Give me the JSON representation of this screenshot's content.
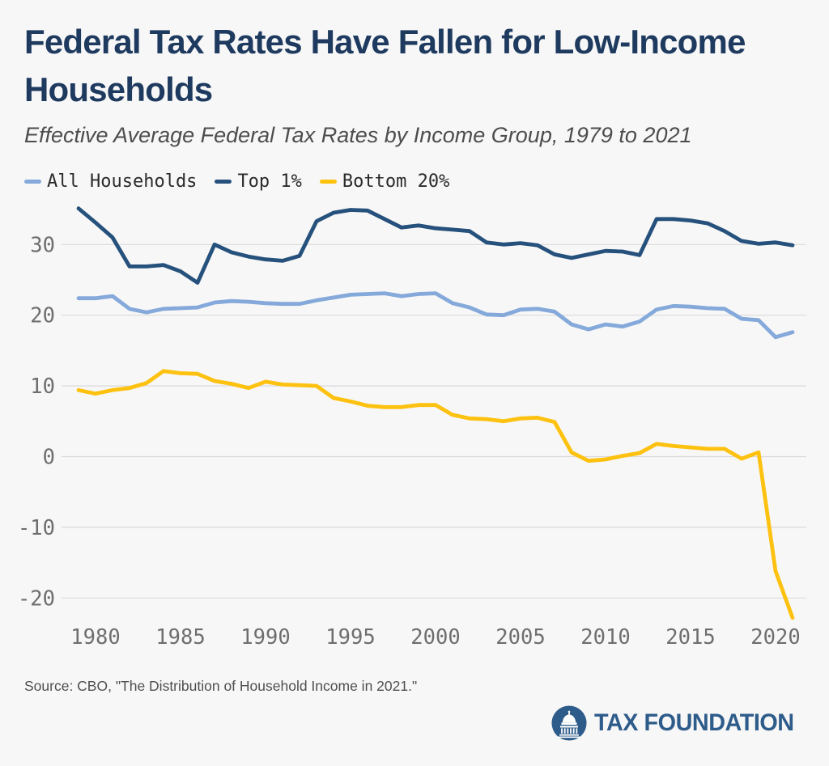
{
  "header": {
    "title": "Federal Tax Rates Have Fallen for Low-Income Households",
    "subtitle": "Effective Average Federal Tax Rates by Income Group, 1979 to 2021"
  },
  "chart_data": {
    "type": "line",
    "x": [
      1979,
      1980,
      1981,
      1982,
      1983,
      1984,
      1985,
      1986,
      1987,
      1988,
      1989,
      1990,
      1991,
      1992,
      1993,
      1994,
      1995,
      1996,
      1997,
      1998,
      1999,
      2000,
      2001,
      2002,
      2003,
      2004,
      2005,
      2006,
      2007,
      2008,
      2009,
      2010,
      2011,
      2012,
      2013,
      2014,
      2015,
      2016,
      2017,
      2018,
      2019,
      2020,
      2021
    ],
    "series": [
      {
        "name": "All Households",
        "color": "#84a9da",
        "values": [
          22.4,
          22.4,
          22.7,
          20.9,
          20.4,
          20.9,
          21.0,
          21.1,
          21.8,
          22.0,
          21.9,
          21.7,
          21.6,
          21.6,
          22.1,
          22.5,
          22.9,
          23.0,
          23.1,
          22.7,
          23.0,
          23.1,
          21.7,
          21.1,
          20.1,
          20.0,
          20.8,
          20.9,
          20.5,
          18.7,
          18.0,
          18.7,
          18.4,
          19.1,
          20.8,
          21.3,
          21.2,
          21.0,
          20.9,
          19.5,
          19.3,
          16.9,
          17.6
        ]
      },
      {
        "name": "Top 1%",
        "color": "#25517c",
        "values": [
          35.1,
          33.1,
          31.0,
          26.9,
          26.9,
          27.1,
          26.2,
          24.6,
          30.0,
          28.9,
          28.3,
          27.9,
          27.7,
          28.4,
          33.3,
          34.5,
          34.9,
          34.8,
          33.6,
          32.4,
          32.7,
          32.3,
          32.1,
          31.9,
          30.3,
          30.0,
          30.2,
          29.9,
          28.6,
          28.1,
          28.6,
          29.1,
          29.0,
          28.5,
          33.6,
          33.6,
          33.4,
          33.0,
          31.9,
          30.5,
          30.1,
          30.3,
          29.9
        ]
      },
      {
        "name": "Bottom 20%",
        "color": "#fdc110",
        "values": [
          9.4,
          8.9,
          9.4,
          9.7,
          10.4,
          12.1,
          11.8,
          11.7,
          10.7,
          10.3,
          9.7,
          10.6,
          10.2,
          10.1,
          10.0,
          8.3,
          7.8,
          7.2,
          7.0,
          7.0,
          7.3,
          7.3,
          5.9,
          5.4,
          5.3,
          5.0,
          5.4,
          5.5,
          4.9,
          0.6,
          -0.6,
          -0.4,
          0.1,
          0.5,
          1.8,
          1.5,
          1.3,
          1.1,
          1.1,
          -0.3,
          0.6,
          -16.2,
          -22.8
        ]
      }
    ],
    "title": "Federal Tax Rates Have Fallen for Low-Income Households",
    "xlabel": "",
    "ylabel": "",
    "x_ticks": [
      "1980",
      "1985",
      "1990",
      "1995",
      "2000",
      "2005",
      "2010",
      "2015",
      "2020"
    ],
    "y_ticks": [
      "30",
      "20",
      "10",
      "0",
      "-10",
      "-20"
    ],
    "xlim": [
      1979,
      2021
    ],
    "ylim": [
      -25,
      36.5
    ],
    "grid": "horizontal",
    "legend_position": "top-left",
    "colors": {
      "grid": "#dadada",
      "tick_label": "#6e6e6e",
      "background": "#f7f7f7"
    }
  },
  "footer": {
    "source": "Source: CBO, \"The Distribution of Household Income in 2021.\"",
    "logo_text": "TAX FOUNDATION",
    "logo_color": "#2e5c8a"
  }
}
